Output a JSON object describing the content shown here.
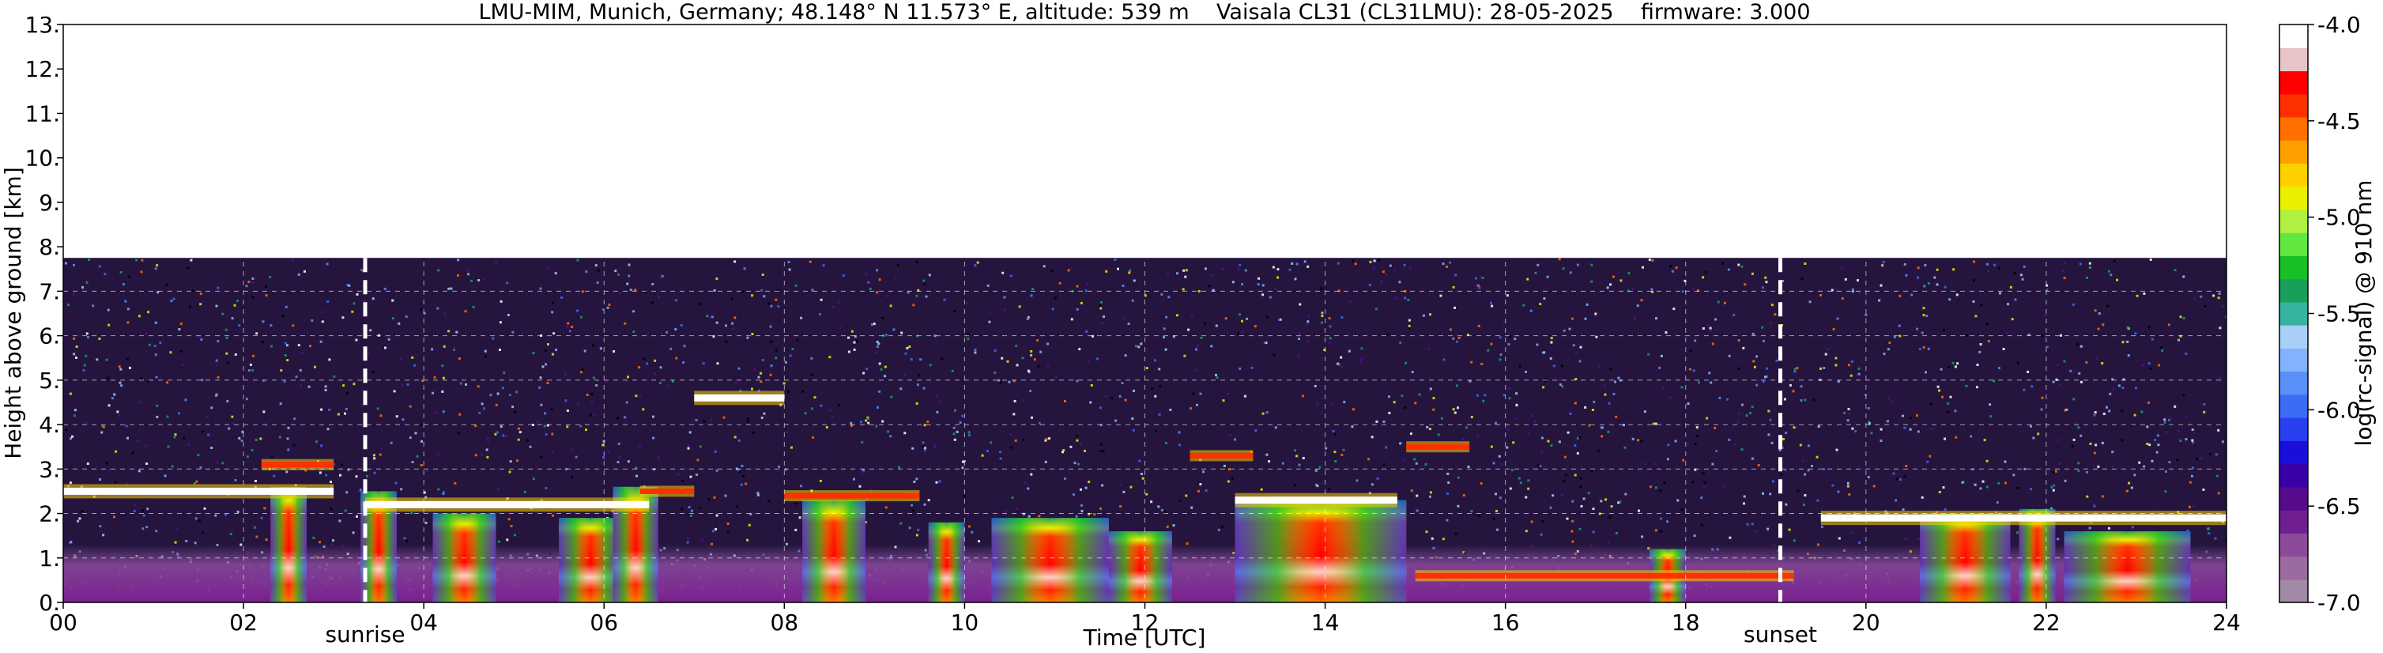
{
  "chart_data": {
    "type": "heatmap",
    "title": "LMU-MIM, Munich, Germany; 48.148° N 11.573° E, altitude: 539 m    Vaisala CL31 (CL31LMU): 28-05-2025    firmware: 3.000",
    "xlabel": "Time [UTC]",
    "ylabel": "Height above ground [km]",
    "xlim": [
      0,
      24
    ],
    "ylim": [
      0,
      13
    ],
    "x_ticks": [
      "00",
      "02",
      "04",
      "06",
      "08",
      "10",
      "12",
      "14",
      "16",
      "18",
      "20",
      "22",
      "24"
    ],
    "y_ticks": [
      "0.",
      "1.",
      "2.",
      "3.",
      "4.",
      "5.",
      "6.",
      "7.",
      "8.",
      "9.",
      "10.",
      "11.",
      "12.",
      "13."
    ],
    "grid": true,
    "data_top_km": 7.75,
    "sunrise_hour": 3.35,
    "sunset_hour": 19.05,
    "sunrise_label": "sunrise",
    "sunset_label": "sunset",
    "colorbar": {
      "label": "log(rc-signal) @ 910 nm",
      "range": [
        -7.0,
        -4.0
      ],
      "ticks": [
        "-4.0",
        "-4.5",
        "-5.0",
        "-5.5",
        "-6.0",
        "-6.5",
        "-7.0"
      ],
      "colors": [
        "#a08aa5",
        "#9a6aa0",
        "#8c4a9a",
        "#6f1f8f",
        "#560a8c",
        "#3a00a8",
        "#1a0fd8",
        "#2a3ff0",
        "#3a6cf5",
        "#5a8ff8",
        "#84b2ff",
        "#a8cff8",
        "#37b4a0",
        "#18a05a",
        "#18c028",
        "#60e840",
        "#b0f040",
        "#e8f000",
        "#ffd000",
        "#ffa000",
        "#ff7000",
        "#ff3000",
        "#ff0000",
        "#e8c4c8",
        "#ffffff"
      ]
    },
    "backscatter_layers": [
      {
        "start": 0.0,
        "end": 3.0,
        "height_km": 2.5,
        "intensity": "high"
      },
      {
        "start": 2.2,
        "end": 3.0,
        "height_km": 3.1,
        "intensity": "medium"
      },
      {
        "start": 3.35,
        "end": 6.5,
        "height_km": 2.2,
        "intensity": "high"
      },
      {
        "start": 6.4,
        "end": 7.0,
        "height_km": 2.5,
        "intensity": "medium"
      },
      {
        "start": 7.0,
        "end": 8.0,
        "height_km": 4.6,
        "intensity": "high"
      },
      {
        "start": 8.0,
        "end": 9.5,
        "height_km": 2.4,
        "intensity": "medium"
      },
      {
        "start": 12.5,
        "end": 13.2,
        "height_km": 3.3,
        "intensity": "medium"
      },
      {
        "start": 13.0,
        "end": 14.8,
        "height_km": 2.3,
        "intensity": "high"
      },
      {
        "start": 14.9,
        "end": 15.6,
        "height_km": 3.5,
        "intensity": "medium"
      },
      {
        "start": 15.0,
        "end": 19.2,
        "height_km": 0.6,
        "intensity": "medium"
      },
      {
        "start": 19.5,
        "end": 24.0,
        "height_km": 1.9,
        "intensity": "high"
      }
    ],
    "precipitation_columns": [
      {
        "start": 2.3,
        "end": 2.7,
        "top_km": 2.6
      },
      {
        "start": 3.3,
        "end": 3.7,
        "top_km": 2.5
      },
      {
        "start": 4.1,
        "end": 4.8,
        "top_km": 2.0
      },
      {
        "start": 5.5,
        "end": 6.2,
        "top_km": 1.9
      },
      {
        "start": 6.1,
        "end": 6.6,
        "top_km": 2.6
      },
      {
        "start": 8.2,
        "end": 8.9,
        "top_km": 2.3
      },
      {
        "start": 9.6,
        "end": 10.0,
        "top_km": 1.8
      },
      {
        "start": 10.3,
        "end": 11.6,
        "top_km": 1.9
      },
      {
        "start": 11.6,
        "end": 12.3,
        "top_km": 1.6
      },
      {
        "start": 13.0,
        "end": 14.9,
        "top_km": 2.3
      },
      {
        "start": 17.6,
        "end": 18.0,
        "top_km": 1.2
      },
      {
        "start": 20.6,
        "end": 21.6,
        "top_km": 2.0
      },
      {
        "start": 21.7,
        "end": 22.1,
        "top_km": 2.1
      },
      {
        "start": 22.2,
        "end": 23.6,
        "top_km": 1.6
      }
    ]
  }
}
